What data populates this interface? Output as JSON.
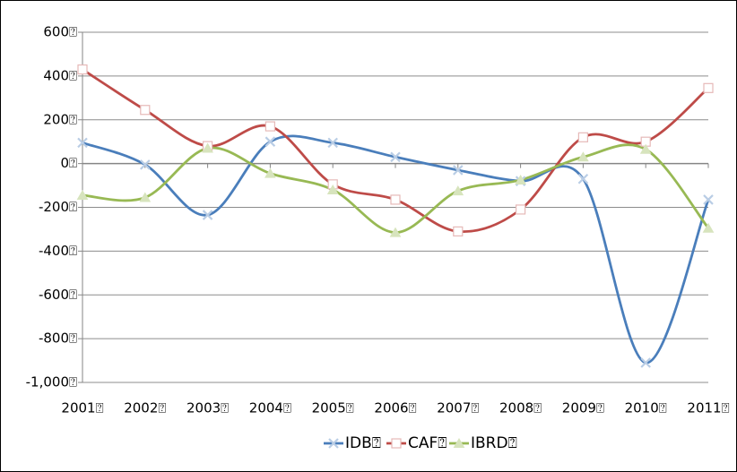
{
  "chart_data": {
    "type": "line",
    "categories": [
      "2001⍰",
      "2002⍰",
      "2003⍰",
      "2004⍰",
      "2005⍰",
      "2006⍰",
      "2007⍰",
      "2008⍰",
      "2009⍰",
      "2010⍰",
      "2011⍰"
    ],
    "series": [
      {
        "name": "IDB⍰",
        "color": "#4a7ebb",
        "marker": "x",
        "values": [
          95,
          -5,
          -235,
          100,
          95,
          30,
          -30,
          -80,
          -70,
          -910,
          -165
        ]
      },
      {
        "name": "CAF⍰",
        "color": "#be4b48",
        "marker": "square",
        "values": [
          430,
          245,
          80,
          170,
          -95,
          -165,
          -310,
          -210,
          120,
          100,
          345
        ]
      },
      {
        "name": "IBRD⍰",
        "color": "#98b954",
        "marker": "triangle",
        "values": [
          -145,
          -155,
          70,
          -45,
          -120,
          -315,
          -125,
          -75,
          30,
          65,
          -295
        ]
      }
    ],
    "ylim": [
      -1000,
      600
    ],
    "yticks": [
      {
        "value": -1000,
        "label": "-1,000⍰"
      },
      {
        "value": -800,
        "label": "-800⍰"
      },
      {
        "value": -600,
        "label": "-600⍰"
      },
      {
        "value": -400,
        "label": "-400⍰"
      },
      {
        "value": -200,
        "label": "-200⍰"
      },
      {
        "value": 0,
        "label": "0⍰"
      },
      {
        "value": 200,
        "label": "200⍰"
      },
      {
        "value": 400,
        "label": "400⍰"
      },
      {
        "value": 600,
        "label": "600⍰"
      }
    ],
    "grid": true,
    "smooth": true,
    "legend": "bottom"
  }
}
